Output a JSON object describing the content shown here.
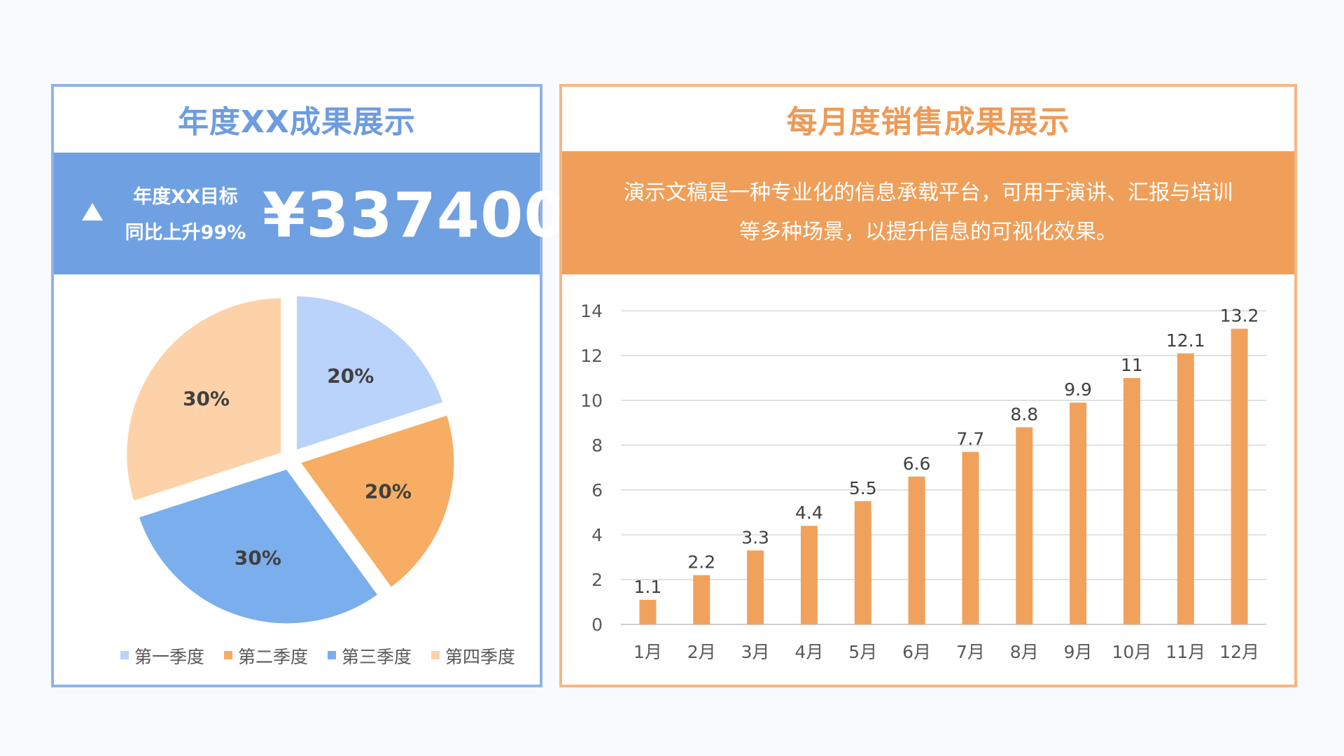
{
  "left_panel": {
    "title": "年度XX成果展示",
    "kpi": {
      "label1": "年度XX目标",
      "label2": "同比上升99%",
      "value": "¥337400"
    }
  },
  "right_panel": {
    "title": "每月度销售成果展示",
    "description_line1": "演示文稿是一种专业化的信息承载平台，可用于演讲、汇报与培训",
    "description_line2": "等多种场景，以提升信息的可视化效果。"
  },
  "colors": {
    "blue_accent": "#6fa0e2",
    "orange_accent": "#ef9f59",
    "q1": "#b9d3fb",
    "q2": "#f7ad63",
    "q3": "#7aaeec",
    "q4": "#fdd2a8",
    "bar": "#f0a25d"
  },
  "chart_data": [
    {
      "type": "pie",
      "categories": [
        "第一季度",
        "第二季度",
        "第三季度",
        "第四季度"
      ],
      "values": [
        20,
        20,
        30,
        30
      ],
      "labels": [
        "20%",
        "20%",
        "30%",
        "30%"
      ],
      "exploded": true,
      "legend": "bottom"
    },
    {
      "type": "bar",
      "categories": [
        "1月",
        "2月",
        "3月",
        "4月",
        "5月",
        "6月",
        "7月",
        "8月",
        "9月",
        "10月",
        "11月",
        "12月"
      ],
      "values": [
        1.1,
        2.2,
        3.3,
        4.4,
        5.5,
        6.6,
        7.7,
        8.8,
        9.9,
        11,
        12.1,
        13.2
      ],
      "ylim": [
        0,
        14
      ],
      "yticks": [
        0,
        2,
        4,
        6,
        8,
        10,
        12,
        14
      ],
      "grid": true,
      "data_labels": true
    }
  ]
}
